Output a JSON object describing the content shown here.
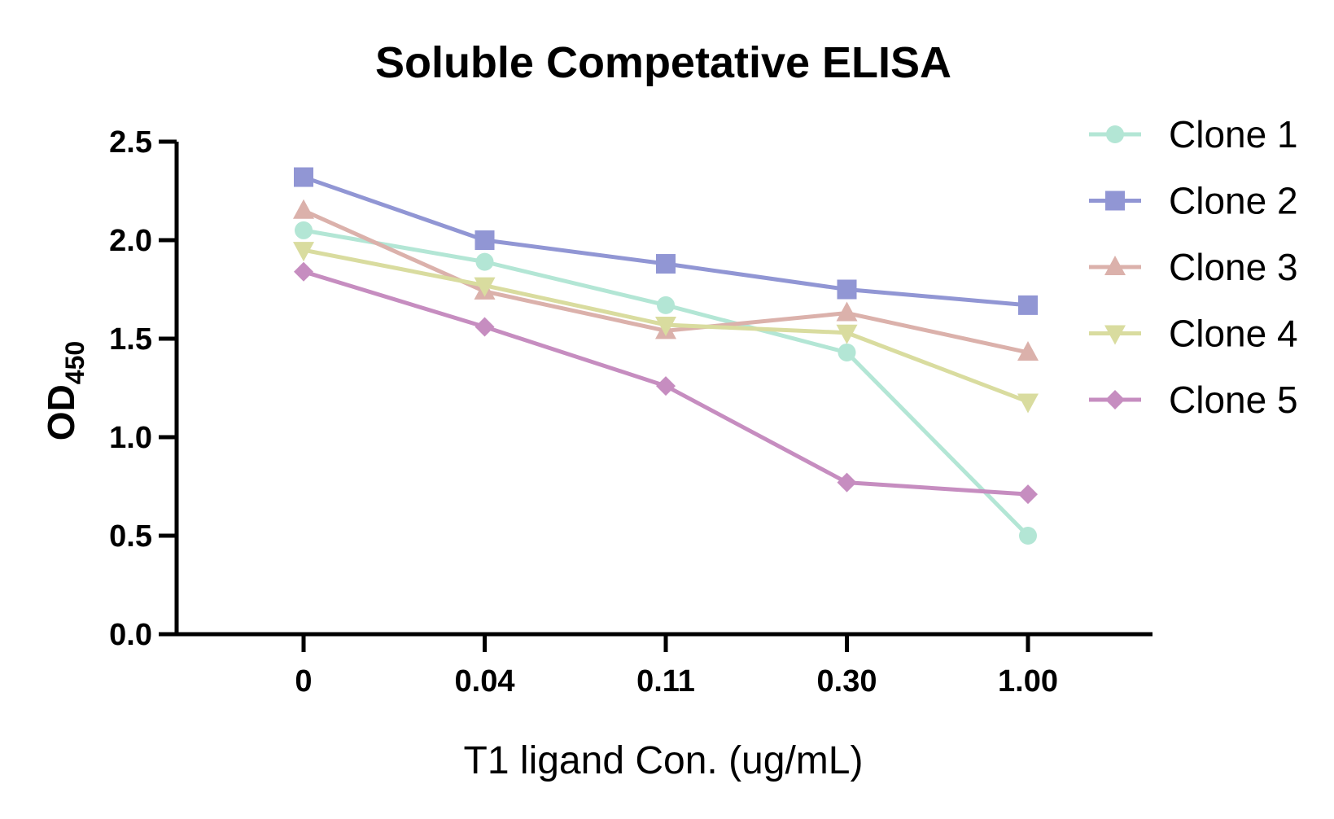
{
  "chart_data": {
    "type": "line",
    "title": "Soluble Competative ELISA",
    "xlabel": "T1 ligand Con. (ug/mL)",
    "ylabel": {
      "main": "OD",
      "sub": "450"
    },
    "categories": [
      "0",
      "0.04",
      "0.11",
      "0.30",
      "1.00"
    ],
    "ylim": [
      0,
      2.5
    ],
    "yticks": [
      "0.0",
      "0.5",
      "1.0",
      "1.5",
      "2.0",
      "2.5"
    ],
    "grid": false,
    "legend_position": "top-right",
    "series": [
      {
        "name": "Clone 1",
        "marker": "circle",
        "color": "#b3e6d5",
        "values": [
          2.05,
          1.89,
          1.67,
          1.43,
          0.5
        ]
      },
      {
        "name": "Clone 2",
        "marker": "square",
        "color": "#9196d4",
        "values": [
          2.32,
          2.0,
          1.88,
          1.75,
          1.67
        ]
      },
      {
        "name": "Clone 3",
        "marker": "triangle-up",
        "color": "#dbb1ab",
        "values": [
          2.15,
          1.74,
          1.54,
          1.63,
          1.43
        ]
      },
      {
        "name": "Clone 4",
        "marker": "triangle-down",
        "color": "#d9dc9f",
        "values": [
          1.95,
          1.77,
          1.57,
          1.53,
          1.18
        ]
      },
      {
        "name": "Clone 5",
        "marker": "diamond",
        "color": "#c68dc0",
        "values": [
          1.84,
          1.56,
          1.26,
          0.77,
          0.71
        ]
      }
    ]
  }
}
